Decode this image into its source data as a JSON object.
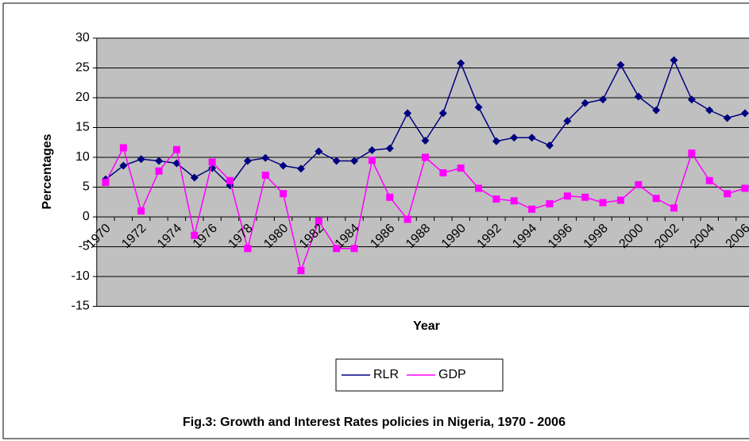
{
  "chart_data": {
    "type": "line",
    "title": "Fig.3: Growth and Interest Rates policies in Nigeria, 1970 - 2006",
    "x_label": "Year",
    "y_label": "Percentages",
    "categories": [
      "1970",
      null,
      "1972",
      null,
      "1974",
      null,
      "1976",
      null,
      "1978",
      null,
      "1980",
      null,
      "1982",
      null,
      "1984",
      null,
      "1986",
      null,
      "1988",
      null,
      "1990",
      null,
      "1992",
      null,
      "1994",
      null,
      "1996",
      null,
      "1998",
      null,
      "2000",
      null,
      "2002",
      null,
      "2004",
      null,
      "2006"
    ],
    "series": [
      {
        "name": "RLR",
        "color": "#000080",
        "marker": "diamond",
        "values": [
          6.3,
          8.6,
          9.7,
          9.4,
          9.0,
          6.6,
          8.2,
          5.3,
          9.4,
          9.9,
          8.6,
          8.1,
          11.0,
          9.4,
          9.4,
          11.2,
          11.5,
          17.4,
          12.8,
          17.4,
          25.8,
          18.4,
          12.7,
          13.3,
          13.3,
          12.0,
          16.1,
          19.1,
          19.7,
          25.5,
          20.2,
          17.9,
          26.3,
          19.7,
          17.9,
          16.6,
          17.4
        ]
      },
      {
        "name": "GDP",
        "color": "#ff00ff",
        "marker": "square",
        "values": [
          5.8,
          11.6,
          1.0,
          7.7,
          11.3,
          -3.1,
          9.2,
          6.1,
          -5.3,
          7.0,
          3.9,
          -9.0,
          -0.7,
          -5.3,
          -5.3,
          9.5,
          3.3,
          -0.4,
          10.0,
          7.4,
          8.2,
          4.8,
          3.0,
          2.7,
          1.3,
          2.2,
          3.5,
          3.3,
          2.4,
          2.8,
          5.4,
          3.1,
          1.5,
          10.7,
          6.1,
          3.9,
          4.8
        ]
      }
    ],
    "ylim": [
      -15,
      30
    ],
    "yticks": [
      -15,
      -10,
      -5,
      0,
      5,
      10,
      15,
      20,
      25,
      30
    ],
    "grid": true,
    "legend": "bottom"
  }
}
